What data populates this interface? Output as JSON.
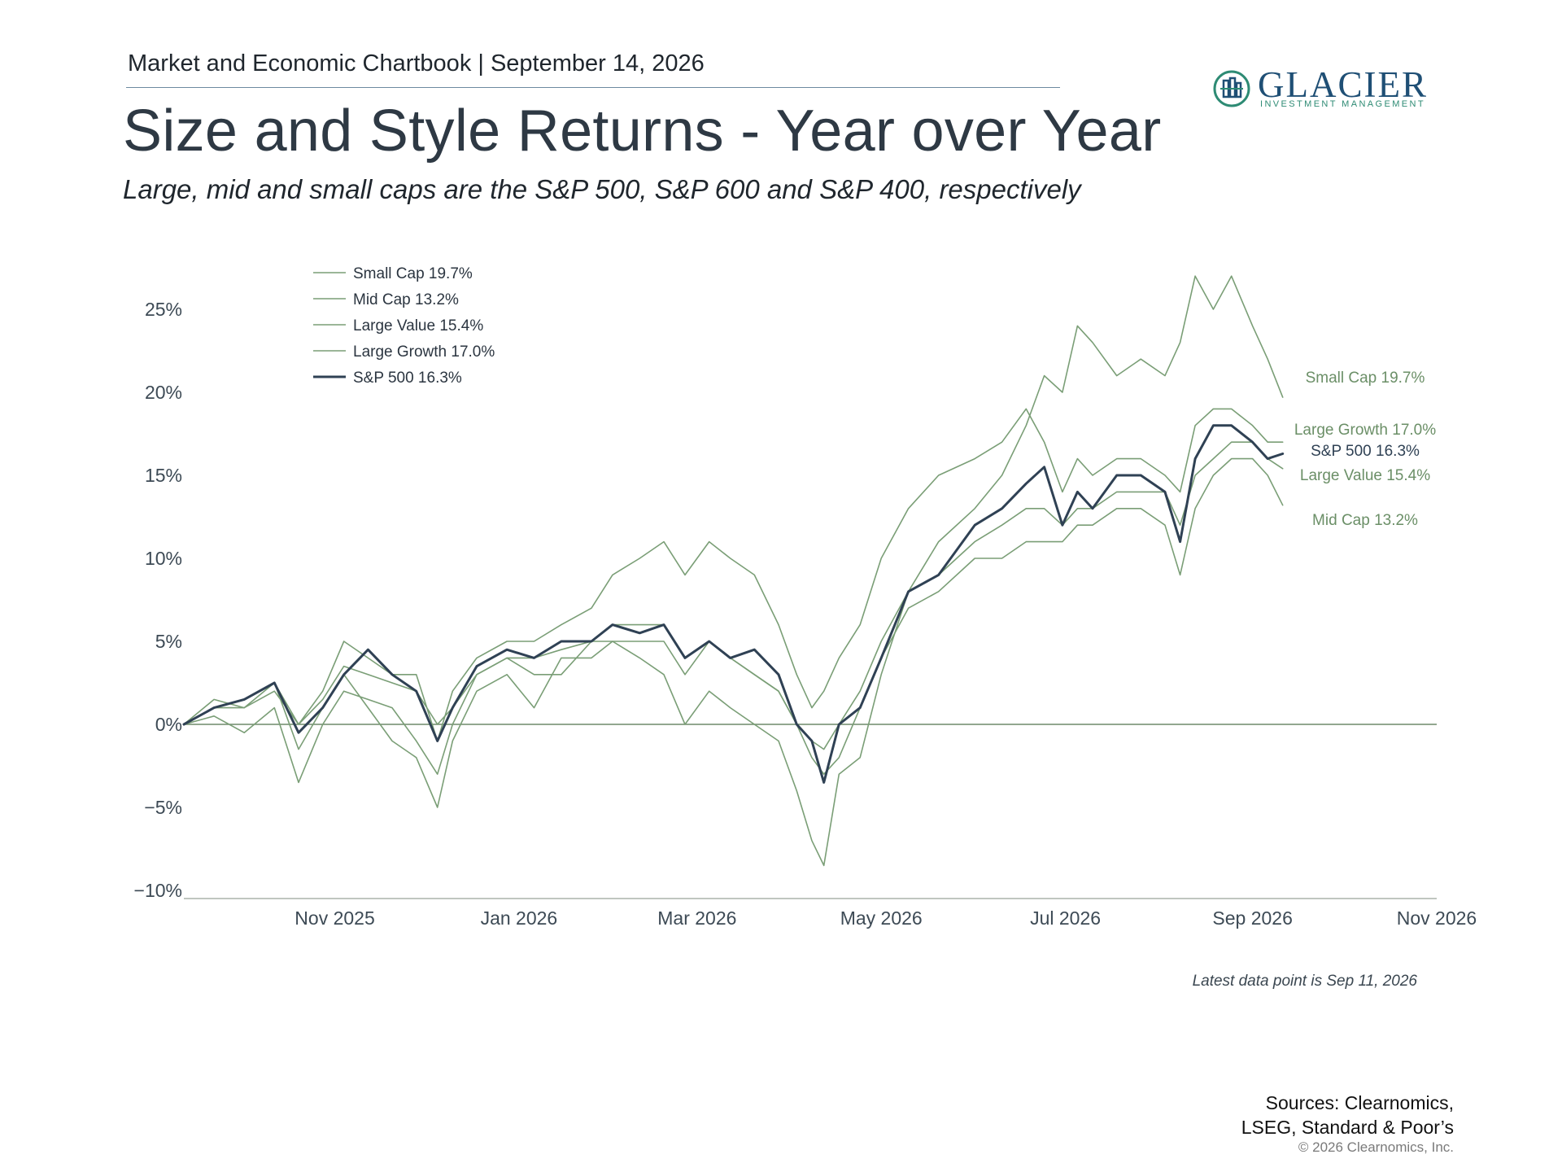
{
  "header": {
    "chartbook": "Market and Economic Chartbook | September 14, 2026",
    "title": "Size and Style Returns - Year over Year",
    "subtitle": "Large, mid and small caps are the S&P 500, S&P 600 and S&P 400, respectively"
  },
  "logo": {
    "name": "GLACIER",
    "tagline": "INVESTMENT MANAGEMENT",
    "color": "#1f4f75",
    "accent": "#2e8b74"
  },
  "footer": {
    "note": "Latest data point is Sep 11, 2026",
    "sources_line1": "Sources: Clearnomics,",
    "sources_line2": "LSEG, Standard & Poor’s",
    "copyright": "© 2026 Clearnomics, Inc."
  },
  "chart_data": {
    "type": "line",
    "x_type": "date",
    "x_range": [
      "2025-09-12",
      "2026-11-01"
    ],
    "x_ticks": [
      "2025-11-01",
      "2026-01-01",
      "2026-03-01",
      "2026-05-01",
      "2026-07-01",
      "2026-09-01",
      "2026-11-01"
    ],
    "x_tick_labels": [
      "Nov 2025",
      "Jan 2026",
      "Mar 2026",
      "May 2026",
      "Jul 2026",
      "Sep 2026",
      "Nov 2026"
    ],
    "ylim": [
      -10,
      28
    ],
    "y_ticks": [
      -10,
      -5,
      0,
      5,
      10,
      15,
      20,
      25
    ],
    "y_tick_labels": [
      "−10%",
      "−5%",
      "0%",
      "5%",
      "10%",
      "15%",
      "20%",
      "25%"
    ],
    "legend_position": "top-left",
    "zero_line": true,
    "series": [
      {
        "name": "Small Cap 19.7%",
        "end_label": "Small Cap 19.7%",
        "color": "#7a9e76",
        "width": 1.6,
        "points": [
          [
            "2025-09-12",
            0
          ],
          [
            "2025-09-22",
            1.5
          ],
          [
            "2025-10-02",
            1
          ],
          [
            "2025-10-12",
            2.5
          ],
          [
            "2025-10-20",
            -1.5
          ],
          [
            "2025-10-28",
            1
          ],
          [
            "2025-11-04",
            3
          ],
          [
            "2025-11-12",
            1
          ],
          [
            "2025-11-20",
            -1
          ],
          [
            "2025-11-28",
            -2
          ],
          [
            "2025-12-05",
            -5
          ],
          [
            "2025-12-10",
            -1
          ],
          [
            "2025-12-18",
            2
          ],
          [
            "2025-12-28",
            3
          ],
          [
            "2026-01-06",
            1
          ],
          [
            "2026-01-15",
            4
          ],
          [
            "2026-01-25",
            4
          ],
          [
            "2026-02-01",
            5
          ],
          [
            "2026-02-10",
            4
          ],
          [
            "2026-02-18",
            3
          ],
          [
            "2026-02-25",
            0
          ],
          [
            "2026-03-05",
            2
          ],
          [
            "2026-03-12",
            1
          ],
          [
            "2026-03-20",
            0
          ],
          [
            "2026-03-28",
            -1
          ],
          [
            "2026-04-03",
            -4
          ],
          [
            "2026-04-08",
            -7
          ],
          [
            "2026-04-12",
            -8.5
          ],
          [
            "2026-04-17",
            -3
          ],
          [
            "2026-04-24",
            -2
          ],
          [
            "2026-05-01",
            3
          ],
          [
            "2026-05-10",
            8
          ],
          [
            "2026-05-20",
            11
          ],
          [
            "2026-06-01",
            13
          ],
          [
            "2026-06-10",
            15
          ],
          [
            "2026-06-18",
            18
          ],
          [
            "2026-06-24",
            21
          ],
          [
            "2026-06-30",
            20
          ],
          [
            "2026-07-05",
            24
          ],
          [
            "2026-07-10",
            23
          ],
          [
            "2026-07-18",
            21
          ],
          [
            "2026-07-26",
            22
          ],
          [
            "2026-08-03",
            21
          ],
          [
            "2026-08-08",
            23
          ],
          [
            "2026-08-13",
            27
          ],
          [
            "2026-08-19",
            25
          ],
          [
            "2026-08-25",
            27
          ],
          [
            "2026-09-01",
            24
          ],
          [
            "2026-09-06",
            22
          ],
          [
            "2026-09-11",
            19.7
          ]
        ]
      },
      {
        "name": "Mid Cap 13.2%",
        "end_label": "Mid Cap 13.2%",
        "color": "#7a9e76",
        "width": 1.6,
        "points": [
          [
            "2025-09-12",
            0
          ],
          [
            "2025-09-22",
            0.5
          ],
          [
            "2025-10-02",
            -0.5
          ],
          [
            "2025-10-12",
            1
          ],
          [
            "2025-10-20",
            -3.5
          ],
          [
            "2025-10-28",
            0
          ],
          [
            "2025-11-04",
            2
          ],
          [
            "2025-11-12",
            1.5
          ],
          [
            "2025-11-20",
            1
          ],
          [
            "2025-11-28",
            -1
          ],
          [
            "2025-12-05",
            -3
          ],
          [
            "2025-12-10",
            0
          ],
          [
            "2025-12-18",
            3
          ],
          [
            "2025-12-28",
            4
          ],
          [
            "2026-01-06",
            3
          ],
          [
            "2026-01-15",
            3
          ],
          [
            "2026-01-25",
            5
          ],
          [
            "2026-02-01",
            5
          ],
          [
            "2026-02-10",
            5
          ],
          [
            "2026-02-18",
            5
          ],
          [
            "2026-02-25",
            3
          ],
          [
            "2026-03-05",
            5
          ],
          [
            "2026-03-12",
            4
          ],
          [
            "2026-03-20",
            3
          ],
          [
            "2026-03-28",
            2
          ],
          [
            "2026-04-03",
            0
          ],
          [
            "2026-04-08",
            -2
          ],
          [
            "2026-04-12",
            -3
          ],
          [
            "2026-04-17",
            -2
          ],
          [
            "2026-04-24",
            1
          ],
          [
            "2026-05-01",
            4
          ],
          [
            "2026-05-10",
            7
          ],
          [
            "2026-05-20",
            8
          ],
          [
            "2026-06-01",
            10
          ],
          [
            "2026-06-10",
            10
          ],
          [
            "2026-06-18",
            11
          ],
          [
            "2026-06-24",
            11
          ],
          [
            "2026-06-30",
            11
          ],
          [
            "2026-07-05",
            12
          ],
          [
            "2026-07-10",
            12
          ],
          [
            "2026-07-18",
            13
          ],
          [
            "2026-07-26",
            13
          ],
          [
            "2026-08-03",
            12
          ],
          [
            "2026-08-08",
            9
          ],
          [
            "2026-08-13",
            13
          ],
          [
            "2026-08-19",
            15
          ],
          [
            "2026-08-25",
            16
          ],
          [
            "2026-09-01",
            16
          ],
          [
            "2026-09-06",
            15
          ],
          [
            "2026-09-11",
            13.2
          ]
        ]
      },
      {
        "name": "Large Value 15.4%",
        "end_label": "Large Value 15.4%",
        "color": "#7a9e76",
        "width": 1.6,
        "points": [
          [
            "2025-09-12",
            0
          ],
          [
            "2025-09-22",
            1
          ],
          [
            "2025-10-02",
            1
          ],
          [
            "2025-10-12",
            2
          ],
          [
            "2025-10-20",
            0
          ],
          [
            "2025-10-28",
            1.5
          ],
          [
            "2025-11-04",
            3.5
          ],
          [
            "2025-11-12",
            3
          ],
          [
            "2025-11-20",
            2.5
          ],
          [
            "2025-11-28",
            2
          ],
          [
            "2025-12-05",
            0
          ],
          [
            "2025-12-10",
            1
          ],
          [
            "2025-12-18",
            3
          ],
          [
            "2025-12-28",
            4
          ],
          [
            "2026-01-06",
            4
          ],
          [
            "2026-01-15",
            4.5
          ],
          [
            "2026-01-25",
            5
          ],
          [
            "2026-02-01",
            6
          ],
          [
            "2026-02-10",
            6
          ],
          [
            "2026-02-18",
            6
          ],
          [
            "2026-02-25",
            4
          ],
          [
            "2026-03-05",
            5
          ],
          [
            "2026-03-12",
            4
          ],
          [
            "2026-03-20",
            3
          ],
          [
            "2026-03-28",
            2
          ],
          [
            "2026-04-03",
            0
          ],
          [
            "2026-04-08",
            -1
          ],
          [
            "2026-04-12",
            -1.5
          ],
          [
            "2026-04-17",
            0
          ],
          [
            "2026-04-24",
            2
          ],
          [
            "2026-05-01",
            5
          ],
          [
            "2026-05-10",
            8
          ],
          [
            "2026-05-20",
            9
          ],
          [
            "2026-06-01",
            11
          ],
          [
            "2026-06-10",
            12
          ],
          [
            "2026-06-18",
            13
          ],
          [
            "2026-06-24",
            13
          ],
          [
            "2026-06-30",
            12
          ],
          [
            "2026-07-05",
            13
          ],
          [
            "2026-07-10",
            13
          ],
          [
            "2026-07-18",
            14
          ],
          [
            "2026-07-26",
            14
          ],
          [
            "2026-08-03",
            14
          ],
          [
            "2026-08-08",
            12
          ],
          [
            "2026-08-13",
            15
          ],
          [
            "2026-08-19",
            16
          ],
          [
            "2026-08-25",
            17
          ],
          [
            "2026-09-01",
            17
          ],
          [
            "2026-09-06",
            16
          ],
          [
            "2026-09-11",
            15.4
          ]
        ]
      },
      {
        "name": "Large Growth 17.0%",
        "end_label": "Large Growth 17.0%",
        "color": "#7a9e76",
        "width": 1.6,
        "points": [
          [
            "2025-09-12",
            0
          ],
          [
            "2025-09-22",
            1
          ],
          [
            "2025-10-02",
            1.5
          ],
          [
            "2025-10-12",
            2.5
          ],
          [
            "2025-10-20",
            0
          ],
          [
            "2025-10-28",
            2
          ],
          [
            "2025-11-04",
            5
          ],
          [
            "2025-11-12",
            4
          ],
          [
            "2025-11-20",
            3
          ],
          [
            "2025-11-28",
            3
          ],
          [
            "2025-12-05",
            -1
          ],
          [
            "2025-12-10",
            2
          ],
          [
            "2025-12-18",
            4
          ],
          [
            "2025-12-28",
            5
          ],
          [
            "2026-01-06",
            5
          ],
          [
            "2026-01-15",
            6
          ],
          [
            "2026-01-25",
            7
          ],
          [
            "2026-02-01",
            9
          ],
          [
            "2026-02-10",
            10
          ],
          [
            "2026-02-18",
            11
          ],
          [
            "2026-02-25",
            9
          ],
          [
            "2026-03-05",
            11
          ],
          [
            "2026-03-12",
            10
          ],
          [
            "2026-03-20",
            9
          ],
          [
            "2026-03-28",
            6
          ],
          [
            "2026-04-03",
            3
          ],
          [
            "2026-04-08",
            1
          ],
          [
            "2026-04-12",
            2
          ],
          [
            "2026-04-17",
            4
          ],
          [
            "2026-04-24",
            6
          ],
          [
            "2026-05-01",
            10
          ],
          [
            "2026-05-10",
            13
          ],
          [
            "2026-05-20",
            15
          ],
          [
            "2026-06-01",
            16
          ],
          [
            "2026-06-10",
            17
          ],
          [
            "2026-06-18",
            19
          ],
          [
            "2026-06-24",
            17
          ],
          [
            "2026-06-30",
            14
          ],
          [
            "2026-07-05",
            16
          ],
          [
            "2026-07-10",
            15
          ],
          [
            "2026-07-18",
            16
          ],
          [
            "2026-07-26",
            16
          ],
          [
            "2026-08-03",
            15
          ],
          [
            "2026-08-08",
            14
          ],
          [
            "2026-08-13",
            18
          ],
          [
            "2026-08-19",
            19
          ],
          [
            "2026-08-25",
            19
          ],
          [
            "2026-09-01",
            18
          ],
          [
            "2026-09-06",
            17
          ],
          [
            "2026-09-11",
            17.0
          ]
        ]
      },
      {
        "name": "S&P 500 16.3%",
        "end_label": "S&P 500 16.3%",
        "color": "#2f4154",
        "width": 3,
        "points": [
          [
            "2025-09-12",
            0
          ],
          [
            "2025-09-22",
            1
          ],
          [
            "2025-10-02",
            1.5
          ],
          [
            "2025-10-12",
            2.5
          ],
          [
            "2025-10-20",
            -0.5
          ],
          [
            "2025-10-28",
            1
          ],
          [
            "2025-11-04",
            3
          ],
          [
            "2025-11-12",
            4.5
          ],
          [
            "2025-11-20",
            3
          ],
          [
            "2025-11-28",
            2
          ],
          [
            "2025-12-05",
            -1
          ],
          [
            "2025-12-10",
            1
          ],
          [
            "2025-12-18",
            3.5
          ],
          [
            "2025-12-28",
            4.5
          ],
          [
            "2026-01-06",
            4
          ],
          [
            "2026-01-15",
            5
          ],
          [
            "2026-01-25",
            5
          ],
          [
            "2026-02-01",
            6
          ],
          [
            "2026-02-10",
            5.5
          ],
          [
            "2026-02-18",
            6
          ],
          [
            "2026-02-25",
            4
          ],
          [
            "2026-03-05",
            5
          ],
          [
            "2026-03-12",
            4
          ],
          [
            "2026-03-20",
            4.5
          ],
          [
            "2026-03-28",
            3
          ],
          [
            "2026-04-03",
            0
          ],
          [
            "2026-04-08",
            -1
          ],
          [
            "2026-04-12",
            -3.5
          ],
          [
            "2026-04-17",
            0
          ],
          [
            "2026-04-24",
            1
          ],
          [
            "2026-05-01",
            4
          ],
          [
            "2026-05-10",
            8
          ],
          [
            "2026-05-20",
            9
          ],
          [
            "2026-06-01",
            12
          ],
          [
            "2026-06-10",
            13
          ],
          [
            "2026-06-18",
            14.5
          ],
          [
            "2026-06-24",
            15.5
          ],
          [
            "2026-06-30",
            12
          ],
          [
            "2026-07-05",
            14
          ],
          [
            "2026-07-10",
            13
          ],
          [
            "2026-07-18",
            15
          ],
          [
            "2026-07-26",
            15
          ],
          [
            "2026-08-03",
            14
          ],
          [
            "2026-08-08",
            11
          ],
          [
            "2026-08-13",
            16
          ],
          [
            "2026-08-19",
            18
          ],
          [
            "2026-08-25",
            18
          ],
          [
            "2026-09-01",
            17
          ],
          [
            "2026-09-06",
            16
          ],
          [
            "2026-09-11",
            16.3
          ]
        ]
      }
    ]
  }
}
